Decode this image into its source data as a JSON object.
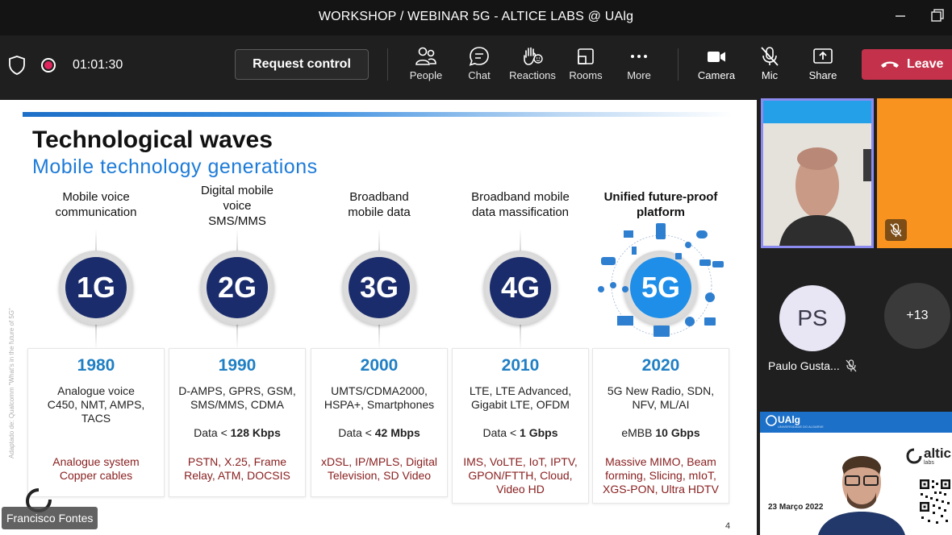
{
  "window": {
    "title": "WORKSHOP / WEBINAR 5G - ALTICE LABS @ UAlg",
    "minimize_icon": "minimize-icon",
    "restore_icon": "restore-icon"
  },
  "toolbar": {
    "timer": "01:01:30",
    "request_control": "Request control",
    "buttons": [
      {
        "label": "People",
        "icon": "people-icon"
      },
      {
        "label": "Chat",
        "icon": "chat-icon"
      },
      {
        "label": "Reactions",
        "icon": "reactions-icon"
      },
      {
        "label": "Rooms",
        "icon": "rooms-icon"
      },
      {
        "label": "More",
        "icon": "more-icon"
      },
      {
        "label": "Camera",
        "icon": "camera-icon"
      },
      {
        "label": "Mic",
        "icon": "mic-off-icon"
      },
      {
        "label": "Share",
        "icon": "share-icon"
      }
    ],
    "leave": "Leave",
    "leave_color": "#c4314b"
  },
  "slide": {
    "title": "Technological waves",
    "subtitle": "Mobile technology generations",
    "credit": "Adaptado de: Qualcomm \"What's in the future of 5G\"",
    "page": "4",
    "columns": [
      {
        "head": [
          "Mobile voice",
          "communication"
        ],
        "gen": "1G",
        "year": "1980",
        "tech": [
          "Analogue voice",
          "C450, NMT, AMPS,",
          "TACS"
        ],
        "data_prefix": "",
        "data_bold": "",
        "extra": [
          "Analogue system",
          "Copper cables"
        ]
      },
      {
        "head": [
          "Digital mobile",
          "voice",
          "SMS/MMS"
        ],
        "gen": "2G",
        "year": "1990",
        "tech": [
          "D-AMPS, GPRS, GSM,",
          "SMS/MMS, CDMA"
        ],
        "data_prefix": "Data < ",
        "data_bold": "128 Kbps",
        "extra": [
          "PSTN, X.25, Frame",
          "Relay, ATM, DOCSIS"
        ]
      },
      {
        "head": [
          "Broadband",
          "mobile data"
        ],
        "gen": "3G",
        "year": "2000",
        "tech": [
          "UMTS/CDMA2000,",
          "HSPA+, Smartphones"
        ],
        "data_prefix": "Data < ",
        "data_bold": "42 Mbps",
        "extra": [
          "xDSL, IP/MPLS, Digital",
          "Television, SD Video"
        ]
      },
      {
        "head": [
          "Broadband mobile",
          "data massification"
        ],
        "gen": "4G",
        "year": "2010",
        "tech": [
          "LTE, LTE Advanced,",
          "Gigabit LTE, OFDM"
        ],
        "data_prefix": "Data < ",
        "data_bold": "1 Gbps",
        "extra": [
          "IMS, VoLTE, IoT, IPTV,",
          "GPON/FTTH, Cloud,",
          "Video HD"
        ]
      },
      {
        "head": [
          "Unified future-proof",
          "platform"
        ],
        "gen": "5G",
        "year": "2020",
        "tech": [
          "5G New Radio, SDN,",
          "NFV, ML/AI"
        ],
        "data_prefix": "eMBB ",
        "data_bold": "10 Gbps",
        "extra": [
          "Massive MIMO, Beam",
          "forming, Slicing, mIoT,",
          "XGS-PON, Ultra HDTV"
        ]
      }
    ]
  },
  "participants": {
    "initials": "PS",
    "name": "Paulo Gusta...",
    "overflow": "+13",
    "speaker_name": "Francisco Fontes"
  },
  "presenter_tile": {
    "brand": "UAlg",
    "brand_sub": "UNIVERSIDADE DO ALGARVE",
    "date": "23 Março 2022",
    "partner": "altic",
    "partner_sub": "labs"
  }
}
